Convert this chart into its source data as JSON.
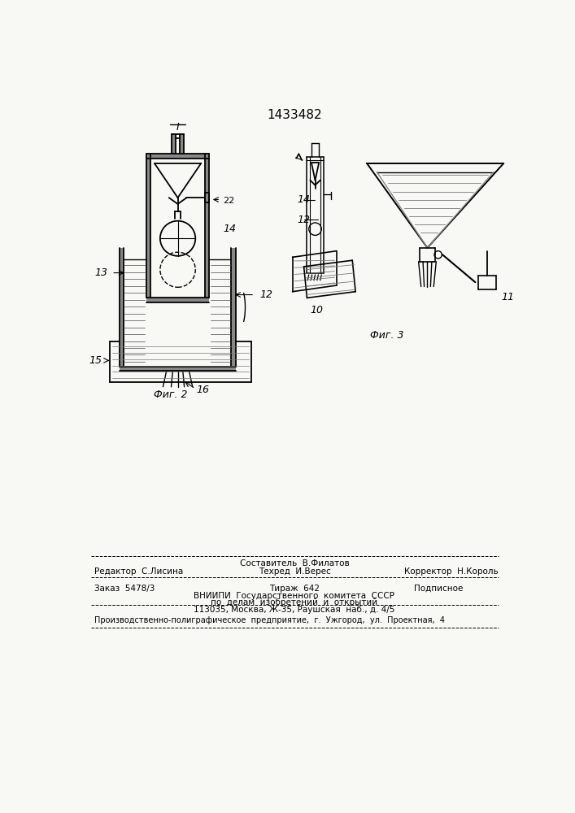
{
  "title": "1433482",
  "bg_color": "#f8f8f5",
  "fig2_label": "Фиг. 2",
  "fig3_label": "Фиг. 3",
  "footer_line0_center": "Составитель  В.Филатов",
  "footer_line1_left": "Редактор  С.Лисина",
  "footer_line1_center": "Техред  И.Верес",
  "footer_line1_right": "Корректор  Н.Король",
  "footer_line2_left": "Заказ  5478/3",
  "footer_line2_center": "Тираж  642",
  "footer_line2_right": "Подписное",
  "footer_line3": "ВНИИПИ  Государственного  комитета  СССР",
  "footer_line4": "по  делам  изобретений  и  открытий",
  "footer_line5": "113035, Москва, Ж-35, Раушская  наб., д. 4/5",
  "footer_line6": "Производственно-полиграфическое  предприятие,  г.  Ужгород,  ул.  Проектная,  4"
}
